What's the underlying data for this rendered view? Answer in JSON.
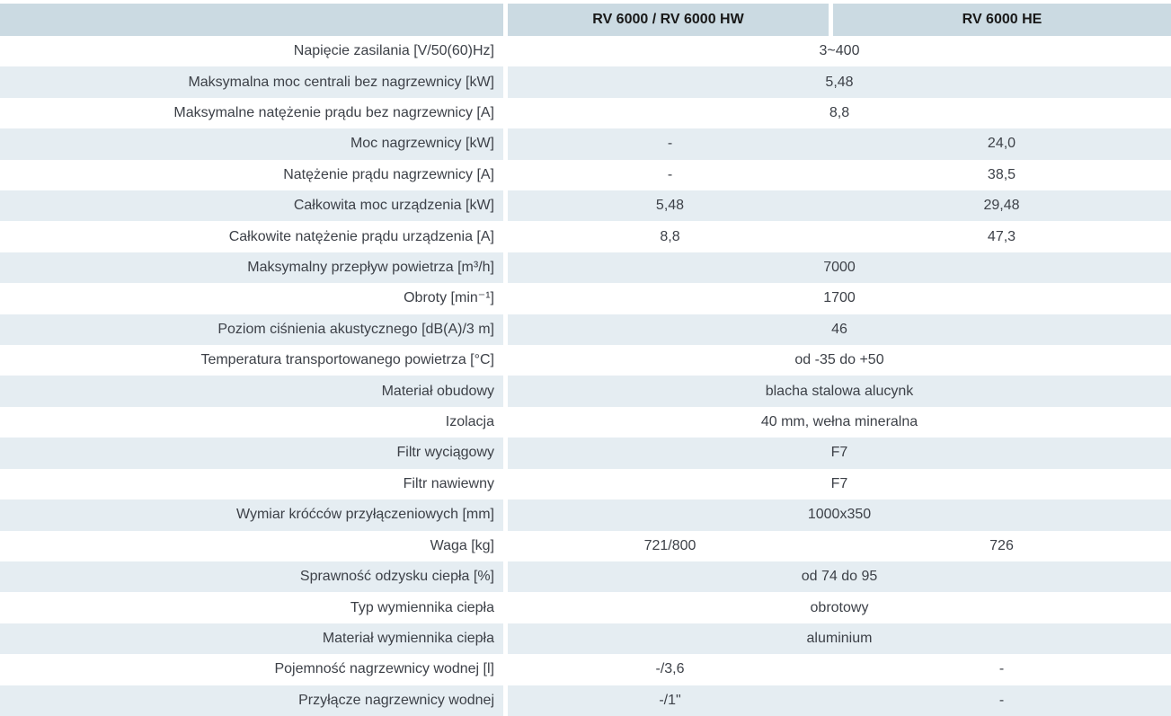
{
  "colors": {
    "header_bg": "#cbdae2",
    "row_alt_bg": "#e5edf2",
    "text": "#3d4148",
    "header_text": "#181818"
  },
  "table": {
    "columns": [
      {
        "label": "RV 6000 / RV 6000 HW"
      },
      {
        "label": "RV 6000 HE"
      }
    ],
    "rows": [
      {
        "label": "Napięcie zasilania [V/50(60)Hz]",
        "merged": true,
        "value": "3~400"
      },
      {
        "label": "Maksymalna moc centrali bez nagrzewnicy [kW]",
        "merged": true,
        "value": "5,48"
      },
      {
        "label": "Maksymalne natężenie prądu bez nagrzewnicy [A]",
        "merged": true,
        "value": "8,8"
      },
      {
        "label": "Moc nagrzewnicy [kW]",
        "merged": false,
        "values": [
          "-",
          "24,0"
        ]
      },
      {
        "label": "Natężenie prądu nagrzewnicy [A]",
        "merged": false,
        "values": [
          "-",
          "38,5"
        ]
      },
      {
        "label": "Całkowita moc urządzenia [kW]",
        "merged": false,
        "values": [
          "5,48",
          "29,48"
        ]
      },
      {
        "label": "Całkowite natężenie prądu urządzenia [A]",
        "merged": false,
        "values": [
          "8,8",
          "47,3"
        ]
      },
      {
        "label": "Maksymalny przepływ powietrza [m³/h]",
        "merged": true,
        "value": "7000"
      },
      {
        "label": "Obroty [min⁻¹]",
        "merged": true,
        "value": "1700"
      },
      {
        "label": "Poziom ciśnienia akustycznego  [dB(A)/3 m]",
        "merged": true,
        "value": "46"
      },
      {
        "label": "Temperatura transportowanego powietrza [°C]",
        "merged": true,
        "value": "od -35 do +50"
      },
      {
        "label": "Materiał obudowy",
        "merged": true,
        "value": "blacha stalowa alucynk"
      },
      {
        "label": "Izolacja",
        "merged": true,
        "value": "40 mm, wełna mineralna"
      },
      {
        "label": "Filtr wyciągowy",
        "merged": true,
        "value": "F7"
      },
      {
        "label": "Filtr nawiewny",
        "merged": true,
        "value": "F7"
      },
      {
        "label": "Wymiar króćców przyłączeniowych [mm]",
        "merged": true,
        "value": "1000x350"
      },
      {
        "label": "Waga [kg]",
        "merged": false,
        "values": [
          "721/800",
          "726"
        ]
      },
      {
        "label": "Sprawność odzysku ciepła [%]",
        "merged": true,
        "value": "od 74 do 95"
      },
      {
        "label": "Typ wymiennika ciepła",
        "merged": true,
        "value": "obrotowy"
      },
      {
        "label": "Materiał wymiennika ciepła",
        "merged": true,
        "value": "aluminium"
      },
      {
        "label": "Pojemność nagrzewnicy wodnej [l]",
        "merged": false,
        "values": [
          "-/3,6",
          "-"
        ]
      },
      {
        "label": "Przyłącze nagrzewnicy wodnej",
        "merged": false,
        "values": [
          "-/1\"",
          "-"
        ]
      }
    ]
  }
}
